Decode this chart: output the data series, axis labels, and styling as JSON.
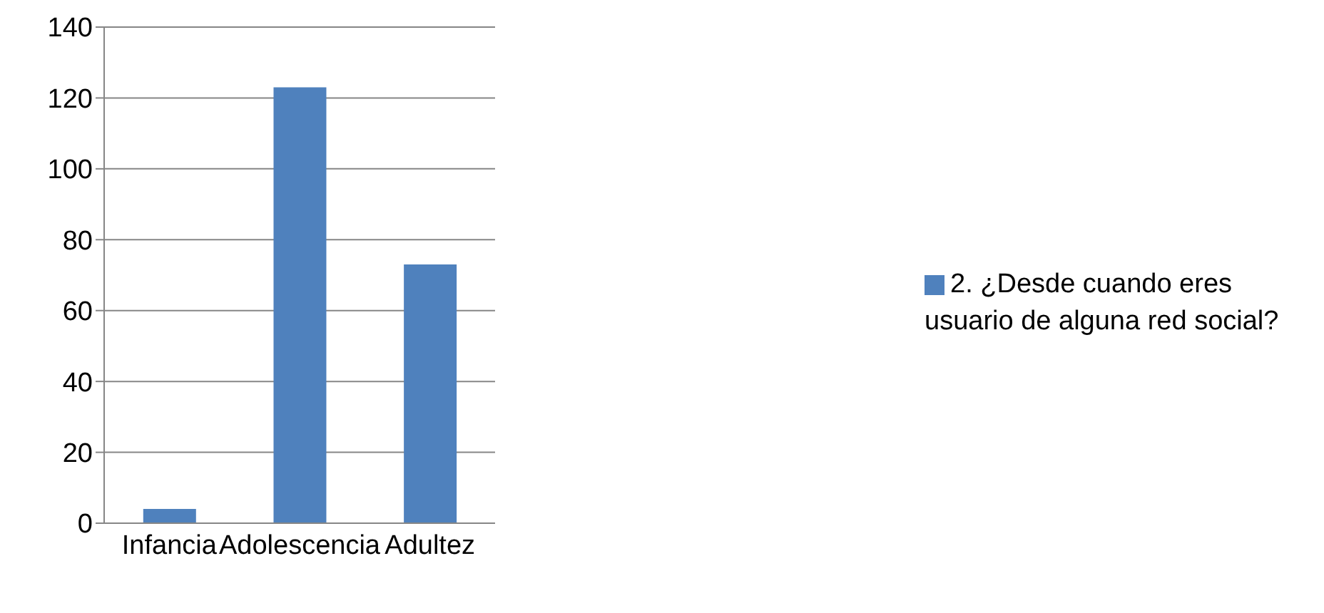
{
  "chart_data": {
    "type": "bar",
    "categories": [
      "Infancia",
      "Adolescencia",
      "Adultez"
    ],
    "series": [
      {
        "name": "2. ¿Desde cuando eres usuario de alguna red social?",
        "color": "#4f81bd",
        "values": [
          4,
          123,
          73
        ]
      }
    ],
    "ylim": [
      0,
      140
    ],
    "yticks": [
      0,
      20,
      40,
      60,
      80,
      100,
      120,
      140
    ],
    "grid": "y",
    "legend": "right"
  }
}
